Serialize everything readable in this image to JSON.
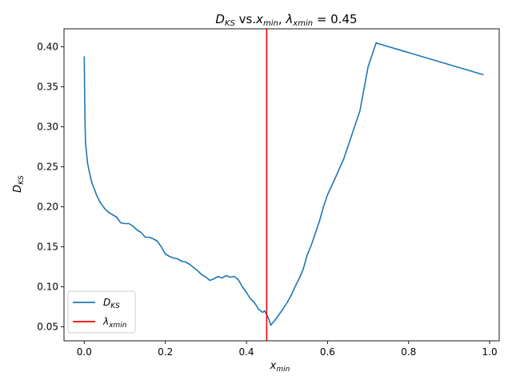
{
  "chart_data": {
    "type": "line",
    "title": {
      "d_main": "D",
      "d_sub": "KS",
      "vs": " vs.",
      "x_main": "x",
      "x_sub": "min",
      "sep": ", ",
      "lambda_main": "λ",
      "lambda_sub": "xmin",
      "eq": " = 0.45"
    },
    "xlabel": {
      "main": "x",
      "sub": "min"
    },
    "ylabel": {
      "main": "D",
      "sub": "KS"
    },
    "xlim": [
      -0.05,
      1.0235
    ],
    "ylim": [
      0.0325,
      0.4225
    ],
    "xticks": [
      0.0,
      0.2,
      0.4,
      0.6,
      0.8,
      1.0
    ],
    "xtick_labels": [
      "0.0",
      "0.2",
      "0.4",
      "0.6",
      "0.8",
      "1.0"
    ],
    "yticks": [
      0.05,
      0.1,
      0.15,
      0.2,
      0.25,
      0.3,
      0.35,
      0.4
    ],
    "ytick_labels": [
      "0.05",
      "0.10",
      "0.15",
      "0.20",
      "0.25",
      "0.30",
      "0.35",
      "0.40"
    ],
    "series": [
      {
        "name": {
          "main": "D",
          "sub": "KS"
        },
        "color": "#1f77b4",
        "x": [
          0.0,
          0.001,
          0.002,
          0.003,
          0.005,
          0.008,
          0.012,
          0.016,
          0.02,
          0.025,
          0.03,
          0.04,
          0.05,
          0.06,
          0.07,
          0.08,
          0.09,
          0.1,
          0.11,
          0.12,
          0.13,
          0.14,
          0.15,
          0.16,
          0.17,
          0.18,
          0.19,
          0.2,
          0.21,
          0.22,
          0.23,
          0.24,
          0.25,
          0.26,
          0.27,
          0.28,
          0.29,
          0.3,
          0.31,
          0.32,
          0.33,
          0.34,
          0.35,
          0.36,
          0.37,
          0.38,
          0.39,
          0.4,
          0.41,
          0.42,
          0.43,
          0.44,
          0.445,
          0.45,
          0.455,
          0.46,
          0.47,
          0.48,
          0.49,
          0.5,
          0.51,
          0.52,
          0.53,
          0.54,
          0.55,
          0.56,
          0.57,
          0.58,
          0.59,
          0.6,
          0.62,
          0.64,
          0.66,
          0.68,
          0.7,
          0.72,
          0.725,
          0.985
        ],
        "values": [
          0.388,
          0.34,
          0.3,
          0.28,
          0.27,
          0.255,
          0.245,
          0.236,
          0.228,
          0.222,
          0.215,
          0.205,
          0.198,
          0.193,
          0.19,
          0.187,
          0.18,
          0.179,
          0.179,
          0.176,
          0.171,
          0.168,
          0.162,
          0.162,
          0.16,
          0.157,
          0.15,
          0.141,
          0.138,
          0.136,
          0.135,
          0.132,
          0.131,
          0.128,
          0.124,
          0.12,
          0.115,
          0.112,
          0.108,
          0.11,
          0.113,
          0.111,
          0.114,
          0.112,
          0.113,
          0.109,
          0.1,
          0.093,
          0.085,
          0.08,
          0.072,
          0.068,
          0.07,
          0.065,
          0.06,
          0.052,
          0.058,
          0.065,
          0.072,
          0.08,
          0.089,
          0.1,
          0.11,
          0.122,
          0.14,
          0.152,
          0.167,
          0.182,
          0.2,
          0.215,
          0.237,
          0.26,
          0.29,
          0.32,
          0.375,
          0.405,
          0.404,
          0.365
        ]
      },
      {
        "name": {
          "main": "λ",
          "sub": "xmin"
        },
        "color": "#ff0000",
        "type": "vline",
        "x": 0.45
      }
    ],
    "legend": "lower-left",
    "grid": false
  }
}
